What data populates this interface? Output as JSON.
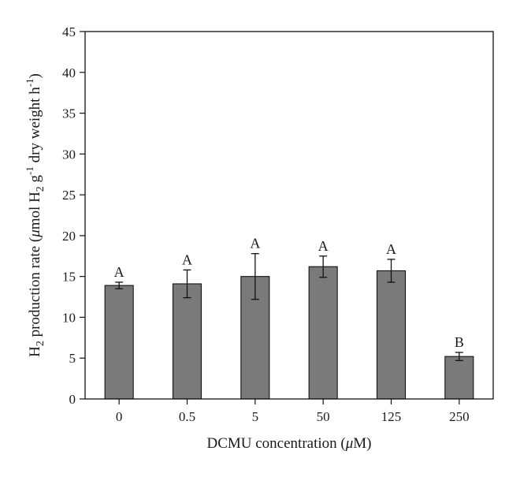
{
  "chart_data": {
    "type": "bar",
    "categories": [
      "0",
      "0.5",
      "5",
      "50",
      "125",
      "250"
    ],
    "values": [
      13.9,
      14.1,
      15.0,
      16.2,
      15.7,
      5.2
    ],
    "errors": [
      0.4,
      1.7,
      2.8,
      1.3,
      1.4,
      0.5
    ],
    "significance_labels": [
      "A",
      "A",
      "A",
      "A",
      "A",
      "B"
    ],
    "xlabel": {
      "prefix": "DCMU concentration (",
      "mu": "μ",
      "suffix": "M)"
    },
    "ylabel": {
      "h": "H",
      "h_sub": "2",
      "p1": " production rate (",
      "mu": "μ",
      "p2": "mol H",
      "h2_sub": "2",
      "p3": " g",
      "g_sup": "-1",
      "p4": " dry weight h",
      "h_sup": "-1",
      "p5": ")"
    },
    "ylim": [
      0,
      45
    ],
    "yticks": [
      0,
      5,
      10,
      15,
      20,
      25,
      30,
      35,
      40,
      45
    ],
    "bar_color": "#7a7a7a",
    "grid": false
  }
}
